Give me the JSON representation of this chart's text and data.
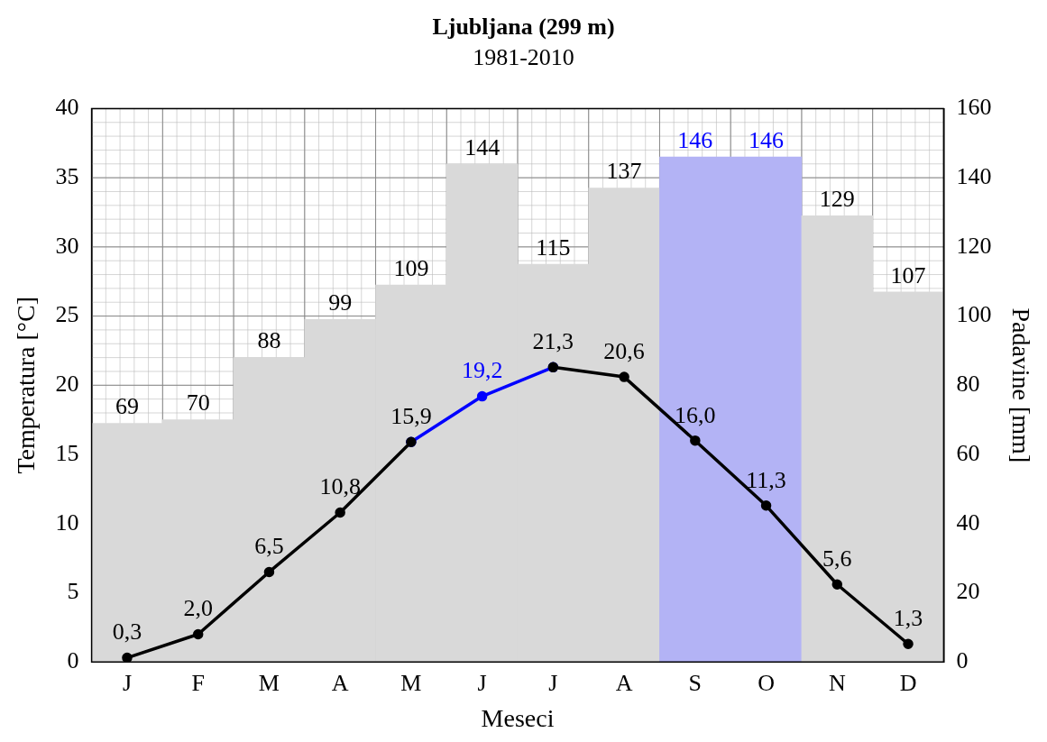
{
  "chart_data": {
    "type": "bar",
    "title": "Ljubljana (299 m)",
    "subtitle": "1981-2010",
    "xlabel": "Meseci",
    "ylabel": "Temperatura [°C]",
    "y2label": "Padavine [mm]",
    "categories": [
      "J",
      "F",
      "M",
      "A",
      "M",
      "J",
      "J",
      "A",
      "S",
      "O",
      "N",
      "D"
    ],
    "series": [
      {
        "axis": "y2",
        "color": "#d9d9d9",
        "colors": [
          "#d9d9d9",
          "#d9d9d9",
          "#d9d9d9",
          "#d9d9d9",
          "#d9d9d9",
          "#d9d9d9",
          "#d9d9d9",
          "#d9d9d9",
          "#b3b3f5",
          "#b3b3f5",
          "#d9d9d9",
          "#d9d9d9"
        ],
        "values": [
          69,
          70,
          88,
          99,
          109,
          144,
          115,
          137,
          146,
          146,
          129,
          107
        ],
        "value_labels": [
          "69",
          "70",
          "88",
          "99",
          "109",
          "144",
          "115",
          "137",
          "146",
          "146",
          "129",
          "107"
        ]
      },
      {
        "type": "line",
        "axis": "y",
        "color": "#000000",
        "values": [
          0.3,
          2.0,
          6.5,
          10.8,
          15.9,
          null,
          21.3,
          20.6,
          16.0,
          11.3,
          5.6,
          1.3
        ],
        "value_labels": [
          "0,3",
          "2,0",
          "6,5",
          "10,8",
          "15,9",
          null,
          "21,3",
          "20,6",
          "16,0",
          "11,3",
          "5,6",
          "1,3"
        ]
      },
      {
        "type": "line",
        "axis": "y",
        "color": "#0000ff",
        "values": [
          null,
          null,
          null,
          null,
          15.9,
          19.2,
          21.3,
          null,
          null,
          null,
          null,
          null
        ],
        "value_labels": [
          null,
          null,
          null,
          null,
          null,
          "19,2",
          null,
          null,
          null,
          null,
          null,
          null
        ]
      }
    ],
    "ylim": [
      0,
      40
    ],
    "yticks": [
      0,
      5,
      10,
      15,
      20,
      25,
      30,
      35,
      40
    ],
    "y2lim": [
      0,
      160
    ],
    "y2ticks": [
      0,
      20,
      40,
      60,
      80,
      100,
      120,
      140,
      160
    ],
    "grid": true,
    "marker": "circle",
    "line_style": "solid",
    "legend": false
  }
}
